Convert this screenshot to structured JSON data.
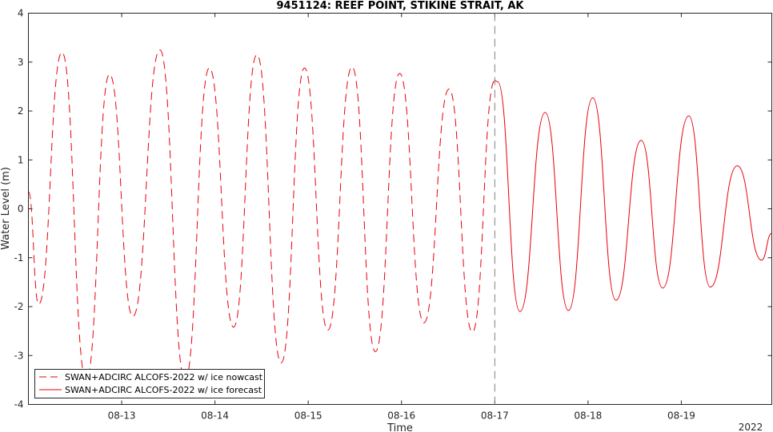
{
  "chart_data": {
    "type": "line",
    "title": "9451124: REEF POINT, STIKINE STRAIT, AK",
    "xlabel": "Time",
    "ylabel": "Water Level (m)",
    "year_label": "2022",
    "x_unit": "day of August 2022",
    "xlim": [
      12.0,
      19.97
    ],
    "ylim": [
      -4,
      4
    ],
    "x_ticks": [
      13,
      14,
      15,
      16,
      17,
      18,
      19
    ],
    "x_tick_labels": [
      "08-13",
      "08-14",
      "08-15",
      "08-16",
      "08-17",
      "08-18",
      "08-19"
    ],
    "y_ticks": [
      -4,
      -3,
      -2,
      -1,
      0,
      1,
      2,
      3,
      4
    ],
    "y_tick_labels": [
      "-4",
      "-3",
      "-2",
      "-1",
      "0",
      "1",
      "2",
      "3",
      "4"
    ],
    "nowcast_end": 17.0,
    "grid": false,
    "legend_position": "bottom-left",
    "colors": {
      "series": "#e8000b",
      "axis": "#262626",
      "divider": "#808080"
    },
    "series": [
      {
        "name": "SWAN+ADCIRC ALCOFS-2022 w/ ice nowcast",
        "style": "dashed",
        "x": [
          12.0,
          12.11,
          12.36,
          12.62,
          12.87,
          13.12,
          13.41,
          13.68,
          13.94,
          14.2,
          14.45,
          14.71,
          14.96,
          15.21,
          15.47,
          15.72,
          15.98,
          16.24,
          16.51,
          16.76,
          17.0
        ],
        "y": [
          0.35,
          -1.95,
          3.2,
          -3.5,
          2.75,
          -2.2,
          3.25,
          -3.5,
          2.88,
          -2.42,
          3.15,
          -3.15,
          2.88,
          -2.48,
          2.9,
          -2.92,
          2.77,
          -2.33,
          2.45,
          -2.52,
          2.62
        ]
      },
      {
        "name": "SWAN+ADCIRC ALCOFS-2022 w/ ice forecast",
        "style": "solid",
        "x": [
          17.0,
          17.03,
          17.27,
          17.54,
          17.79,
          18.05,
          18.3,
          18.57,
          18.8,
          19.08,
          19.31,
          19.6,
          19.86,
          19.97
        ],
        "y": [
          2.62,
          2.6,
          -2.1,
          1.97,
          -2.08,
          2.27,
          -1.87,
          1.4,
          -1.62,
          1.9,
          -1.6,
          0.88,
          -1.05,
          -0.5
        ]
      }
    ]
  }
}
